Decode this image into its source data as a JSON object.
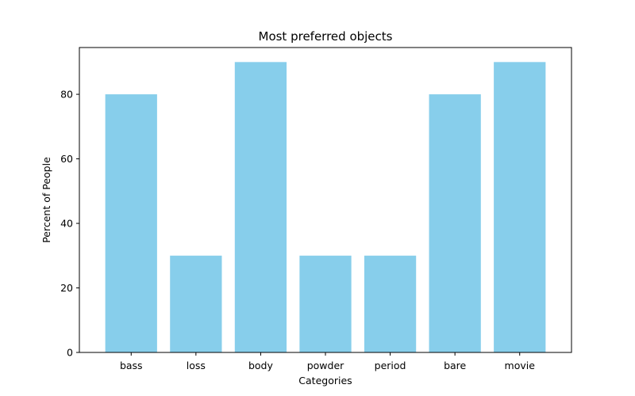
{
  "chart_data": {
    "type": "bar",
    "title": "Most preferred objects",
    "xlabel": "Categories",
    "ylabel": "Percent of People",
    "categories": [
      "bass",
      "loss",
      "body",
      "powder",
      "period",
      "bare",
      "movie"
    ],
    "values": [
      80,
      30,
      90,
      30,
      30,
      80,
      90
    ],
    "ylim": [
      0,
      94.5
    ],
    "yticks": [
      0,
      20,
      40,
      60,
      80
    ],
    "grid": false,
    "bar_color": "#87CEEB"
  }
}
